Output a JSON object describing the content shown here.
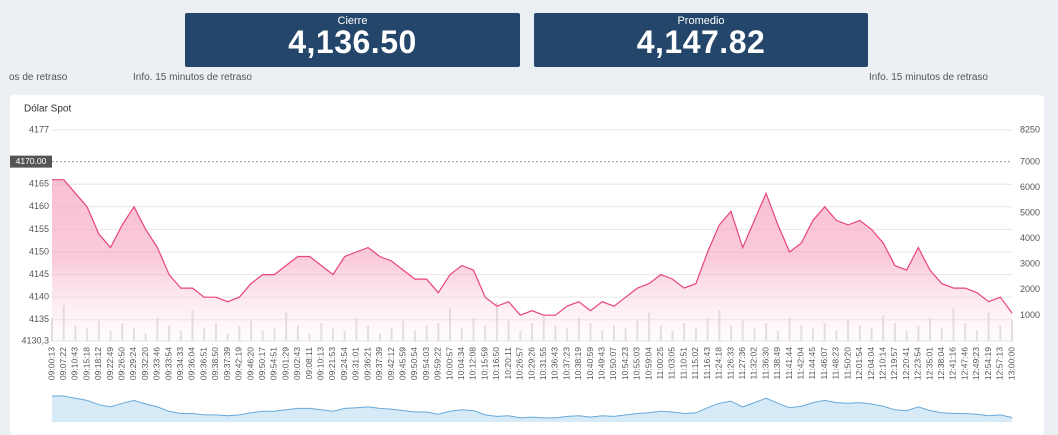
{
  "stats": [
    {
      "label": "Cierre",
      "value": "4,136.50"
    },
    {
      "label": "Promedio",
      "value": "4,147.82"
    }
  ],
  "notes": [
    "os de retraso",
    "Info. 15 minutos de retraso",
    "Info. 15 minutos de retraso"
  ],
  "chart_data": {
    "type": "line",
    "title": "Dólar Spot",
    "categories": [
      "09:00:13",
      "09:07:22",
      "09:10:43",
      "09:15:18",
      "09:18:12",
      "09:22:49",
      "09:26:50",
      "09:29:24",
      "09:32:20",
      "09:33:46",
      "09:33:54",
      "09:34:33",
      "09:36:04",
      "09:36:51",
      "09:38:50",
      "09:37:39",
      "09:42:19",
      "09:46:20",
      "09:50:17",
      "09:54:51",
      "09:01:29",
      "09:02:43",
      "09:08:11",
      "09:10:13",
      "09:21:53",
      "09:24:54",
      "09:31:01",
      "09:36:21",
      "09:37:39",
      "09:42:12",
      "09:45:59",
      "09:50:54",
      "09:54:03",
      "09:59:22",
      "10:00:57",
      "10:04:34",
      "10:12:08",
      "10:15:59",
      "10:16:50",
      "10:20:11",
      "10:26:57",
      "10:29:26",
      "10:31:55",
      "10:36:43",
      "10:37:23",
      "10:38:19",
      "10:40:59",
      "10:49:43",
      "10:50:07",
      "10:54:23",
      "10:55:03",
      "10:59:04",
      "11:00:25",
      "11:03:05",
      "11:10:51",
      "11:15:02",
      "11:16:43",
      "11:24:18",
      "11:26:33",
      "11:27:36",
      "11:32:02",
      "11:36:30",
      "11:38:49",
      "11:41:44",
      "11:42:04",
      "11:44:45",
      "11:46:07",
      "11:48:23",
      "11:50:20",
      "12:01:54",
      "12:04:04",
      "12:10:14",
      "12:19:57",
      "12:20:41",
      "12:23:54",
      "12:35:01",
      "12:38:04",
      "12:41:16",
      "12:47:46",
      "12:49:23",
      "12:54:19",
      "12:57:13",
      "13:00:00"
    ],
    "series": [
      {
        "color": "#e8457a",
        "values": [
          4166,
          4166,
          4163,
          4160,
          4154,
          4151,
          4156,
          4160,
          4155,
          4151,
          4145,
          4142,
          4142,
          4140,
          4140,
          4139,
          4140,
          4143,
          4145,
          4145,
          4147,
          4149,
          4149,
          4147,
          4145,
          4149,
          4150,
          4151,
          4149,
          4148,
          4146,
          4144,
          4144,
          4141,
          4145,
          4147,
          4146,
          4140,
          4138,
          4139,
          4136,
          4137,
          4136,
          4136,
          4138,
          4139,
          4137,
          4139,
          4138,
          4140,
          4142,
          4143,
          4145,
          4144,
          4142,
          4143,
          4150,
          4156,
          4159,
          4151,
          4157,
          4163,
          4156,
          4150,
          4152,
          4157,
          4160,
          4157,
          4156,
          4157,
          4155,
          4152,
          4147,
          4146,
          4151,
          4146,
          4143,
          4142,
          4142,
          4141,
          4139,
          4140,
          4136.5
        ]
      },
      {
        "color": "#dddddd",
        "axis": "y2",
        "values": [
          900,
          1400,
          600,
          500,
          800,
          400,
          700,
          500,
          300,
          900,
          600,
          400,
          1200,
          500,
          700,
          300,
          600,
          800,
          400,
          500,
          1100,
          600,
          300,
          700,
          500,
          400,
          900,
          600,
          300,
          500,
          800,
          400,
          600,
          700,
          1300,
          500,
          900,
          600,
          1500,
          800,
          400,
          700,
          1000,
          600,
          500,
          900,
          700,
          400,
          600,
          500,
          800,
          1100,
          600,
          400,
          700,
          500,
          900,
          1200,
          600,
          800,
          500,
          700,
          400,
          900,
          600,
          500,
          700,
          400,
          800,
          600,
          500,
          1000,
          700,
          400,
          600,
          900,
          500,
          1300,
          700,
          400,
          1100,
          600,
          800
        ]
      }
    ],
    "ylim": [
      4130.3,
      4177
    ],
    "yticks": [
      4177,
      4165,
      4160,
      4155,
      4150,
      4145,
      4140,
      4135,
      {
        "value": 4130.3,
        "label": "4130,3"
      }
    ],
    "y2lim": [
      0,
      8250
    ],
    "y2ticks": [
      8250,
      7000,
      6000,
      5000,
      4000,
      3000,
      2000,
      1000
    ],
    "plot_line": {
      "value": 4170,
      "label": "4170.00"
    },
    "grid": true
  }
}
